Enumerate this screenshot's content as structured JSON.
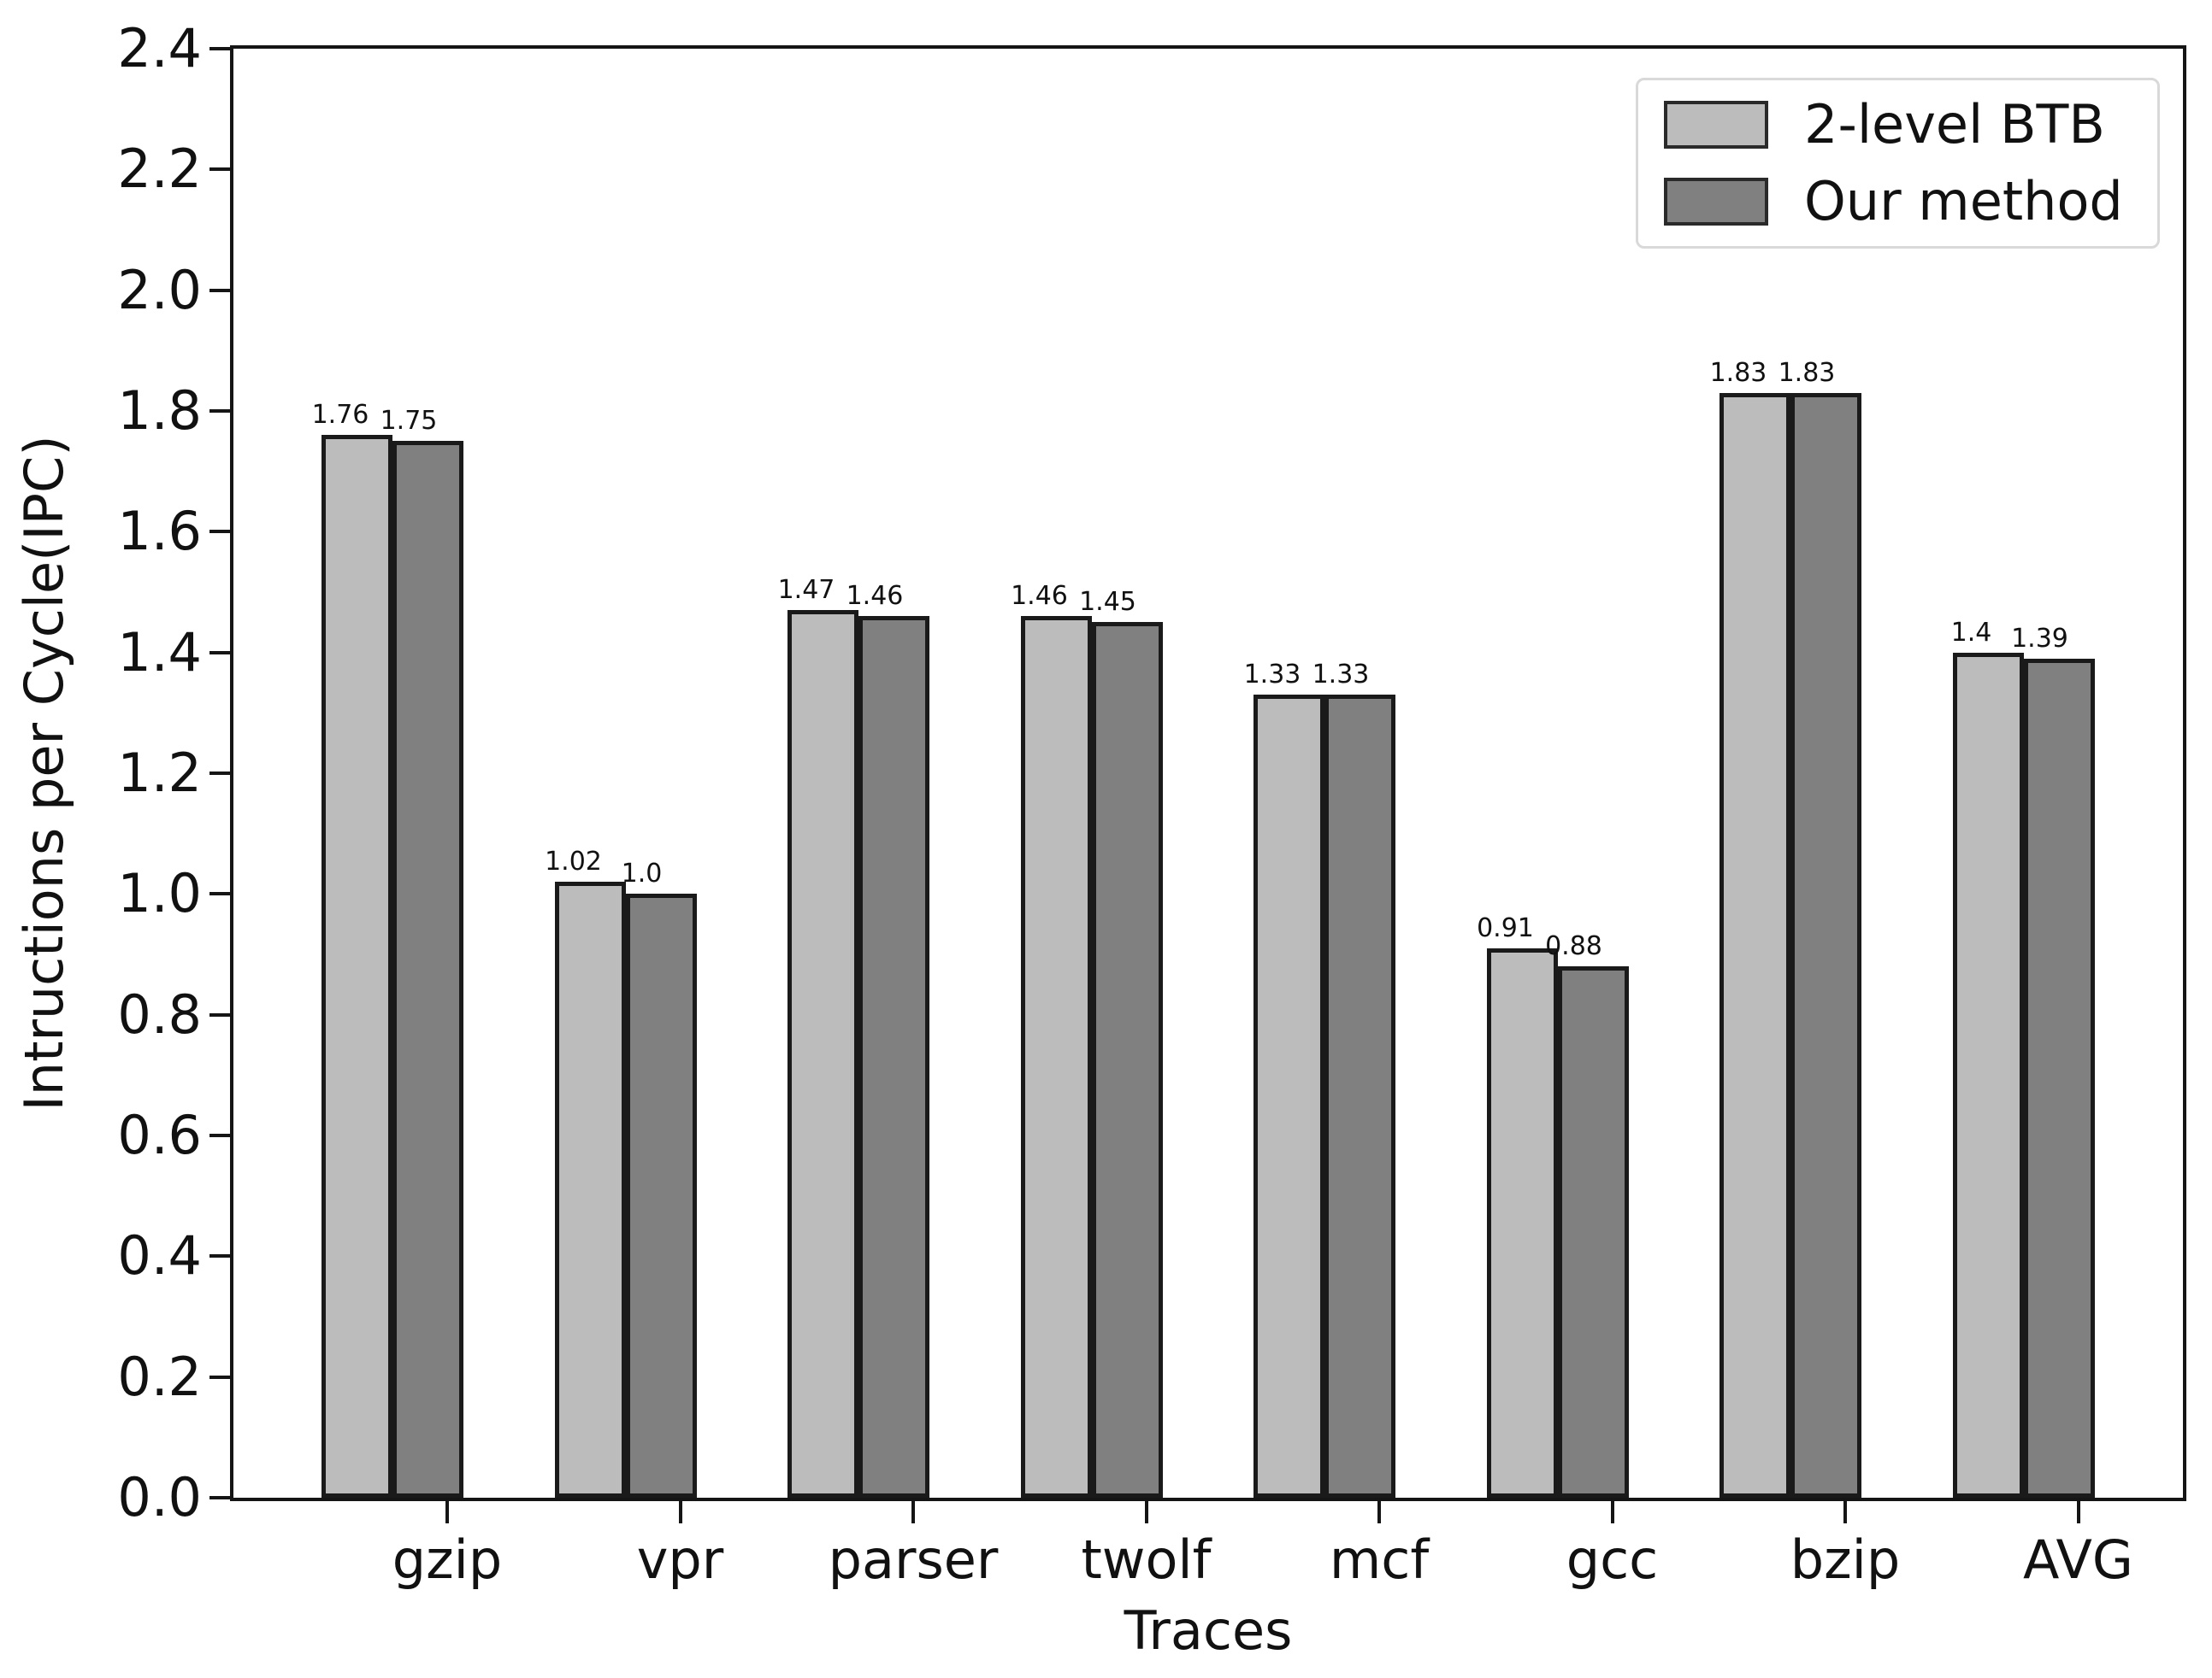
{
  "chart_data": {
    "type": "bar",
    "title": "",
    "xlabel": "Traces",
    "ylabel": "Intructions per Cycle(IPC)",
    "categories": [
      "gzip",
      "vpr",
      "parser",
      "twolf",
      "mcf",
      "gcc",
      "bzip",
      "AVG"
    ],
    "series": [
      {
        "name": "2-level BTB",
        "color": "#bcbcbc",
        "values": [
          1.76,
          1.02,
          1.47,
          1.46,
          1.33,
          0.91,
          1.83,
          1.4
        ],
        "labels": [
          "1.76",
          "1.02",
          "1.47",
          "1.46",
          "1.33",
          "0.91",
          "1.83",
          "1.4"
        ]
      },
      {
        "name": "Our method",
        "color": "#808080",
        "values": [
          1.75,
          1.0,
          1.46,
          1.45,
          1.33,
          0.88,
          1.83,
          1.39
        ],
        "labels": [
          "1.75",
          "1.0",
          "1.46",
          "1.45",
          "1.33",
          "0.88",
          "1.83",
          "1.39"
        ]
      }
    ],
    "ylim": [
      0,
      2.4
    ],
    "ytick_step": 0.2,
    "ytick_labels": [
      "0.0",
      "0.2",
      "0.4",
      "0.6",
      "0.8",
      "1.0",
      "1.2",
      "1.4",
      "1.6",
      "1.8",
      "2.0",
      "2.2",
      "2.4"
    ],
    "grid": false,
    "legend_position": "upper right",
    "bar_edge_color": "#1a1a1a",
    "background_color": "#ffffff"
  }
}
